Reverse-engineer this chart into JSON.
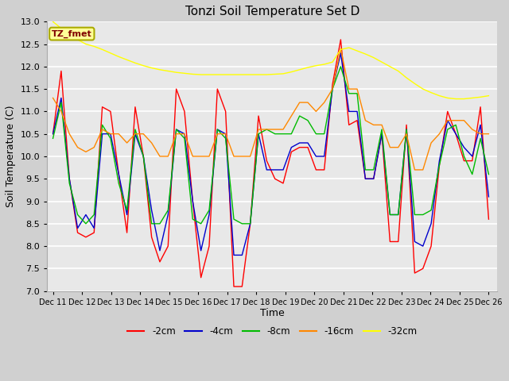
{
  "title": "Tonzi Soil Temperature Set D",
  "xlabel": "Time",
  "ylabel": "Soil Temperature (C)",
  "ylim": [
    7.0,
    13.0
  ],
  "yticks": [
    7.0,
    7.5,
    8.0,
    8.5,
    9.0,
    9.5,
    10.0,
    10.5,
    11.0,
    11.5,
    12.0,
    12.5,
    13.0
  ],
  "legend_label": "TZ_fmet",
  "legend_box_color": "#ffff99",
  "legend_text_color": "#800000",
  "legend_edge_color": "#aaaa00",
  "fig_bg_color": "#d0d0d0",
  "ax_bg_color": "#e8e8e8",
  "grid_color": "#ffffff",
  "series_colors": {
    "-2cm": "#ff0000",
    "-4cm": "#0000cc",
    "-8cm": "#00bb00",
    "-16cm": "#ff8800",
    "-32cm": "#ffff00"
  },
  "x_tick_labels": [
    "Dec 11",
    "Dec 12",
    "Dec 13",
    "Dec 14",
    "Dec 15",
    "Dec 16",
    "Dec 17",
    "Dec 18",
    "Dec 19",
    "Dec 20",
    "Dec 21",
    "Dec 22",
    "Dec 23",
    "Dec 24",
    "Dec 25",
    "Dec 26"
  ],
  "n_days": 16,
  "data": {
    "-2cm": [
      10.5,
      11.9,
      9.5,
      8.3,
      8.2,
      8.3,
      11.1,
      11.0,
      9.6,
      8.3,
      11.1,
      10.0,
      8.2,
      7.65,
      8.0,
      11.5,
      11.0,
      9.0,
      7.3,
      8.0,
      11.5,
      11.0,
      7.1,
      7.1,
      8.5,
      10.9,
      9.9,
      9.5,
      9.4,
      10.1,
      10.2,
      10.2,
      9.7,
      9.7,
      11.6,
      12.6,
      10.7,
      10.8,
      9.5,
      9.5,
      10.5,
      8.1,
      8.1,
      10.7,
      7.4,
      7.5,
      8.0,
      9.8,
      11.0,
      10.5,
      9.9,
      9.9,
      11.1,
      8.6
    ],
    "-4cm": [
      10.5,
      11.3,
      9.5,
      8.4,
      8.7,
      8.4,
      10.5,
      10.5,
      9.6,
      8.7,
      10.5,
      10.0,
      8.8,
      7.9,
      8.7,
      10.6,
      10.5,
      9.0,
      7.9,
      8.7,
      10.6,
      10.5,
      7.8,
      7.8,
      8.5,
      10.5,
      9.7,
      9.7,
      9.7,
      10.2,
      10.3,
      10.3,
      10.0,
      10.0,
      11.5,
      12.3,
      11.0,
      11.0,
      9.5,
      9.5,
      10.5,
      8.7,
      8.7,
      10.6,
      8.1,
      8.0,
      8.5,
      9.9,
      10.8,
      10.5,
      10.2,
      10.0,
      10.7,
      9.1
    ],
    "-8cm": [
      10.4,
      11.2,
      9.4,
      8.7,
      8.5,
      8.7,
      10.7,
      10.4,
      9.4,
      8.8,
      10.6,
      10.0,
      8.5,
      8.5,
      8.8,
      10.6,
      10.4,
      8.6,
      8.5,
      8.8,
      10.6,
      10.4,
      8.6,
      8.5,
      8.5,
      10.5,
      10.6,
      10.5,
      10.5,
      10.5,
      10.9,
      10.8,
      10.5,
      10.5,
      11.5,
      12.0,
      11.4,
      11.4,
      9.7,
      9.7,
      10.6,
      8.7,
      8.7,
      10.6,
      8.7,
      8.7,
      8.8,
      9.8,
      10.6,
      10.7,
      10.0,
      9.6,
      10.4,
      9.6
    ],
    "-16cm": [
      11.3,
      11.0,
      10.5,
      10.2,
      10.1,
      10.2,
      10.6,
      10.5,
      10.5,
      10.3,
      10.5,
      10.5,
      10.3,
      10.0,
      10.0,
      10.5,
      10.5,
      10.0,
      10.0,
      10.0,
      10.5,
      10.5,
      10.0,
      10.0,
      10.0,
      10.6,
      10.6,
      10.6,
      10.6,
      10.9,
      11.2,
      11.2,
      11.0,
      11.2,
      11.5,
      12.4,
      11.5,
      11.5,
      10.8,
      10.7,
      10.7,
      10.2,
      10.2,
      10.5,
      9.7,
      9.7,
      10.3,
      10.5,
      10.8,
      10.8,
      10.8,
      10.6,
      10.5,
      10.5
    ],
    "-32cm": [
      13.0,
      12.85,
      12.7,
      12.6,
      12.5,
      12.45,
      12.38,
      12.3,
      12.22,
      12.15,
      12.08,
      12.02,
      11.97,
      11.93,
      11.9,
      11.87,
      11.85,
      11.83,
      11.82,
      11.82,
      11.82,
      11.82,
      11.82,
      11.82,
      11.82,
      11.82,
      11.82,
      11.83,
      11.84,
      11.88,
      11.93,
      11.98,
      12.02,
      12.05,
      12.1,
      12.38,
      12.42,
      12.35,
      12.28,
      12.2,
      12.1,
      12.0,
      11.9,
      11.75,
      11.62,
      11.5,
      11.42,
      11.35,
      11.3,
      11.28,
      11.28,
      11.3,
      11.32,
      11.35
    ]
  }
}
